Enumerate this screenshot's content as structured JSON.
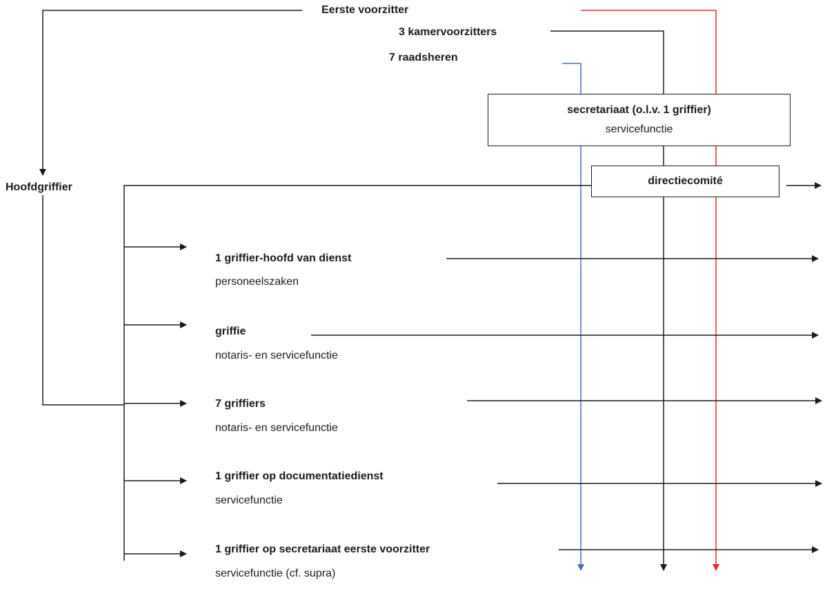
{
  "colors": {
    "black": "#1a1a1a",
    "red": "#e8272c",
    "blue": "#4a6fb5"
  },
  "top": {
    "eerste_voorzitter": "Eerste voorzitter",
    "kamervoorzitters": "3 kamervoorzitters",
    "raadsheren": "7 raadsheren"
  },
  "secretariaat": {
    "title": "secretariaat (o.l.v. 1 griffier)",
    "subtitle": "servicefunctie"
  },
  "directiecomite": "directiecomité",
  "hoofdgriffier": "Hoofdgriffier",
  "units": [
    {
      "title": "1 griffier-hoofd van dienst",
      "subtitle": "personeelszaken"
    },
    {
      "title": "griffie",
      "subtitle": "notaris- en servicefunctie"
    },
    {
      "title": "7 griffiers",
      "subtitle": "notaris- en servicefunctie"
    },
    {
      "title": "1 griffier op documentatiedienst",
      "subtitle": "servicefunctie"
    },
    {
      "title": "1 griffier op secretariaat eerste voorzitter",
      "subtitle": "servicefunctie (cf. supra)"
    }
  ]
}
